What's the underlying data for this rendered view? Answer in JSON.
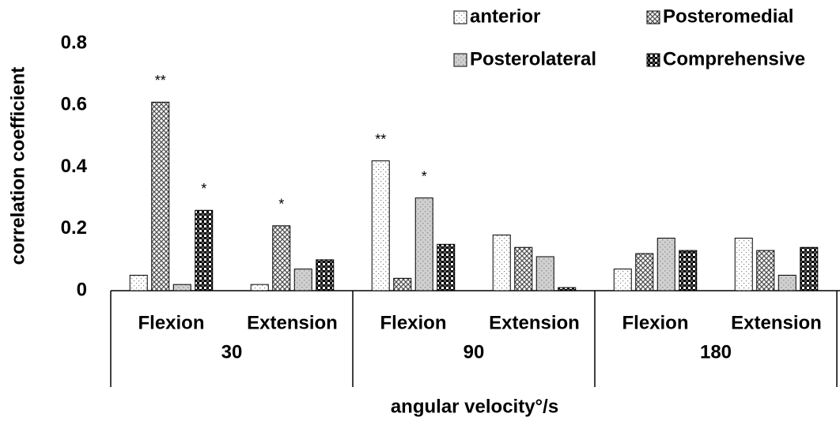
{
  "chart_data": {
    "type": "bar",
    "y_label": "correlation coefficient",
    "x_label": "angular velocity°/s",
    "categories": [
      "Flexion",
      "Extension",
      "Flexion",
      "Extension",
      "Flexion",
      "Extension"
    ],
    "groups": [
      "30",
      "90",
      "180"
    ],
    "series": [
      {
        "name": "anterior",
        "color": "#808080",
        "values": [
          0.05,
          0.02,
          0.42,
          0.18,
          0.07,
          0.17
        ],
        "annotations": [
          null,
          null,
          "**",
          null,
          null,
          null
        ]
      },
      {
        "name": "Posteromedial",
        "color": "#505050",
        "values": [
          0.61,
          0.21,
          0.04,
          0.14,
          0.12,
          0.13
        ],
        "annotations": [
          "**",
          "*",
          null,
          null,
          null,
          null
        ]
      },
      {
        "name": "Posterolateral",
        "color": "#9a9a9a",
        "values": [
          0.02,
          0.07,
          0.3,
          0.11,
          0.17,
          0.05
        ],
        "annotations": [
          null,
          null,
          "*",
          null,
          null,
          null
        ]
      },
      {
        "name": "Comprehensive",
        "color": "#000000",
        "values": [
          0.26,
          0.1,
          0.15,
          0.01,
          0.13,
          0.14
        ],
        "annotations": [
          "*",
          null,
          null,
          null,
          null,
          null
        ]
      }
    ],
    "ylim": [
      0,
      0.8
    ],
    "yticks": [
      0,
      0.2,
      0.4,
      0.6,
      0.8
    ],
    "grid": false,
    "legend": "top-right"
  }
}
